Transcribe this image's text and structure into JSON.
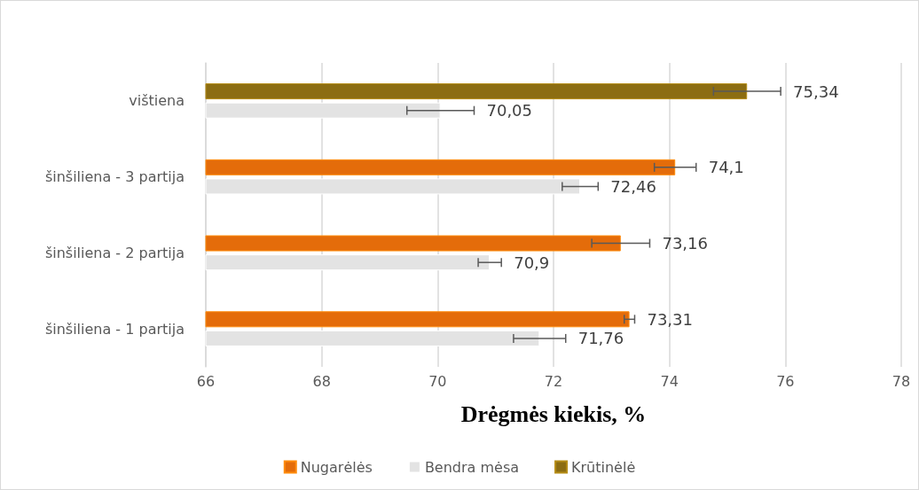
{
  "chart_data": {
    "type": "bar",
    "orientation": "horizontal",
    "xlabel": "Drėgmės kiekis, %",
    "categories": [
      "vištiena",
      "šinšiliena - 3 partija",
      "šinšiliena - 2 partija",
      "šinšiliena - 1 partija"
    ],
    "series": [
      {
        "name": "Nugarėlės",
        "color": "#e46c0a",
        "values": [
          null,
          74.1,
          73.16,
          73.31
        ],
        "errors": [
          null,
          0.36,
          0.5,
          0.09
        ],
        "value_labels": [
          null,
          "74,1",
          "73,16",
          "73,31"
        ]
      },
      {
        "name": "Bendra mėsa",
        "color": "#e3e3e3",
        "values": [
          70.05,
          72.46,
          70.9,
          71.76
        ],
        "errors": [
          0.58,
          0.31,
          0.2,
          0.45
        ],
        "value_labels": [
          "70,05",
          "72,46",
          "70,9",
          "71,76"
        ]
      },
      {
        "name": "Krūtinėlė",
        "color": "#8c6d12",
        "values": [
          75.34,
          null,
          null,
          null
        ],
        "errors": [
          0.58,
          null,
          null,
          null
        ],
        "value_labels": [
          "75,34",
          null,
          null,
          null
        ]
      }
    ],
    "xlim": [
      66,
      78
    ],
    "xticks": [
      66,
      68,
      70,
      72,
      74,
      76,
      78
    ],
    "grid": "x",
    "legend": "bottom"
  }
}
